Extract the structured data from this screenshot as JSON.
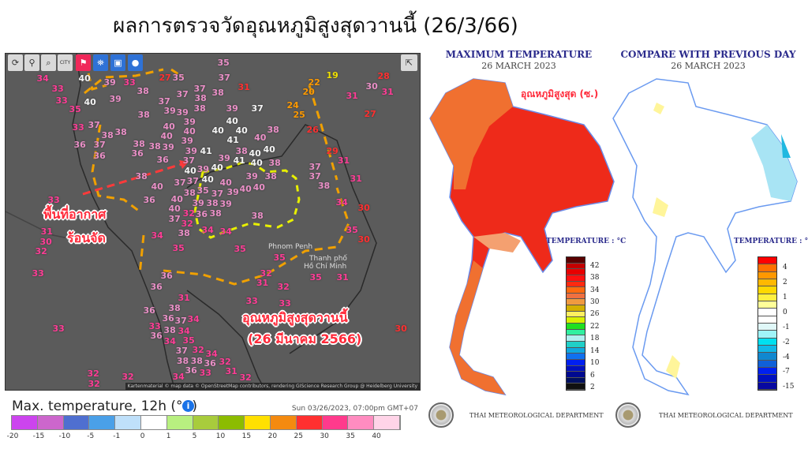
{
  "title": "ผลการตรวจวัดอุณหภูมิสูงสุดวานนี้ (26/3/66)",
  "map": {
    "toolbar": [
      {
        "icon": "refresh-icon",
        "label": ""
      },
      {
        "icon": "location-pin-icon",
        "label": ""
      },
      {
        "icon": "zoom-icon",
        "label": ""
      },
      {
        "icon": "city-icon",
        "label": "CITY"
      },
      {
        "icon": "weather-station-icon",
        "label": ""
      },
      {
        "icon": "satellite-icon",
        "label": ""
      },
      {
        "icon": "station-data-icon",
        "label": ""
      },
      {
        "icon": "balloon-icon",
        "label": ""
      }
    ],
    "share_icon": "share-icon",
    "cities": [
      "Phnom Penh",
      "Thanh phố",
      "Hồ Chí Minh"
    ],
    "annotation_hot_area": [
      "พื้นที่อากาศ",
      "ร้อนจัด"
    ],
    "annotation_max_temp": [
      "อุณหภูมิสูงสุดวานนี้",
      "(26 มีนาคม 2566)"
    ],
    "attribution": "Kartenmaterial © map data © OpenStreetMap contributors, rendering GIScience Research Group @ Heidelberg University",
    "label_colors": {
      "pk": "#e98fc6",
      "hp": "#ff3d96",
      "wh": "#f4f4f4",
      "rd": "#ff3030",
      "or": "#ff9a00",
      "ye": "#f0e000"
    },
    "stations": [
      [
        "34",
        "hp"
      ],
      [
        "40",
        "wh"
      ],
      [
        "39",
        "pk"
      ],
      [
        "33",
        "hp"
      ],
      [
        "27",
        "rd"
      ],
      [
        "35",
        "pk"
      ],
      [
        "37",
        "pk"
      ],
      [
        "31",
        "rd"
      ],
      [
        "22",
        "or"
      ],
      [
        "20",
        "or"
      ],
      [
        "19",
        "ye"
      ],
      [
        "35",
        "pk"
      ],
      [
        "28",
        "rd"
      ],
      [
        "30",
        "pk"
      ],
      [
        "31",
        "hp"
      ],
      [
        "31",
        "hp"
      ],
      [
        "27",
        "rd"
      ],
      [
        "33",
        "hp"
      ],
      [
        "33",
        "hp"
      ],
      [
        "40",
        "wh"
      ],
      [
        "39",
        "pk"
      ],
      [
        "38",
        "pk"
      ],
      [
        "37",
        "pk"
      ],
      [
        "37",
        "pk"
      ],
      [
        "38",
        "pk"
      ],
      [
        "38",
        "pk"
      ],
      [
        "38",
        "pk"
      ],
      [
        "24",
        "or"
      ],
      [
        "25",
        "or"
      ],
      [
        "35",
        "hp"
      ],
      [
        "37",
        "pk"
      ],
      [
        "39",
        "pk"
      ],
      [
        "39",
        "pk"
      ],
      [
        "39",
        "pk"
      ],
      [
        "38",
        "pk"
      ],
      [
        "39",
        "pk"
      ],
      [
        "37",
        "wh"
      ],
      [
        "40",
        "wh"
      ],
      [
        "26",
        "rd"
      ],
      [
        "33",
        "hp"
      ],
      [
        "37",
        "pk"
      ],
      [
        "38",
        "pk"
      ],
      [
        "38",
        "pk"
      ],
      [
        "40",
        "pk"
      ],
      [
        "40",
        "pk"
      ],
      [
        "40",
        "wh"
      ],
      [
        "40",
        "wh"
      ],
      [
        "41",
        "wh"
      ],
      [
        "38",
        "pk"
      ],
      [
        "40",
        "pk"
      ],
      [
        "40",
        "pk"
      ],
      [
        "39",
        "pk"
      ],
      [
        "36",
        "pk"
      ],
      [
        "37",
        "pk"
      ],
      [
        "38",
        "pk"
      ],
      [
        "38",
        "pk"
      ],
      [
        "39",
        "pk"
      ],
      [
        "39",
        "pk"
      ],
      [
        "37",
        "pk"
      ],
      [
        "41",
        "wh"
      ],
      [
        "40",
        "wh"
      ],
      [
        "29",
        "rd"
      ],
      [
        "36",
        "pk"
      ],
      [
        "36",
        "pk"
      ],
      [
        "38",
        "pk"
      ],
      [
        "40",
        "wh"
      ],
      [
        "41",
        "wh"
      ],
      [
        "40",
        "wh"
      ],
      [
        "31",
        "hp"
      ],
      [
        "36",
        "pk"
      ],
      [
        "38",
        "pk"
      ],
      [
        "40",
        "wh"
      ],
      [
        "37",
        "pk"
      ],
      [
        "39",
        "pk"
      ],
      [
        "40",
        "wh"
      ],
      [
        "39",
        "pk"
      ],
      [
        "37",
        "pk"
      ],
      [
        "37",
        "pk"
      ],
      [
        "38",
        "pk"
      ],
      [
        "40",
        "wh"
      ],
      [
        "39",
        "pk"
      ],
      [
        "38",
        "pk"
      ],
      [
        "31",
        "hp"
      ],
      [
        "37",
        "pk"
      ],
      [
        "40",
        "pk"
      ],
      [
        "39",
        "pk"
      ],
      [
        "40",
        "pk"
      ],
      [
        "40",
        "pk"
      ],
      [
        "40",
        "pk"
      ],
      [
        "38",
        "pk"
      ],
      [
        "35",
        "pk"
      ],
      [
        "37",
        "pk"
      ],
      [
        "38",
        "pk"
      ],
      [
        "40",
        "pk"
      ],
      [
        "36",
        "pk"
      ],
      [
        "34",
        "hp"
      ],
      [
        "30",
        "rd"
      ],
      [
        "33",
        "hp"
      ],
      [
        "40",
        "pk"
      ],
      [
        "39",
        "pk"
      ],
      [
        "38",
        "pk"
      ],
      [
        "39",
        "pk"
      ],
      [
        "32",
        "hp"
      ],
      [
        "36",
        "pk"
      ],
      [
        "37",
        "pk"
      ],
      [
        "38",
        "pk"
      ],
      [
        "38",
        "pk"
      ],
      [
        "32",
        "hp"
      ],
      [
        "31",
        "hp"
      ],
      [
        "30",
        "hp"
      ],
      [
        "34",
        "hp"
      ],
      [
        "38",
        "pk"
      ],
      [
        "34",
        "hp"
      ],
      [
        "34",
        "hp"
      ],
      [
        "35",
        "hp"
      ],
      [
        "30",
        "rd"
      ],
      [
        "32",
        "hp"
      ],
      [
        "35",
        "hp"
      ],
      [
        "35",
        "hp"
      ],
      [
        "35",
        "hp"
      ],
      [
        "33",
        "hp"
      ],
      [
        "36",
        "pk"
      ],
      [
        "36",
        "pk"
      ],
      [
        "32",
        "hp"
      ],
      [
        "31",
        "hp"
      ],
      [
        "32",
        "hp"
      ],
      [
        "35",
        "hp"
      ],
      [
        "31",
        "hp"
      ],
      [
        "31",
        "hp"
      ],
      [
        "33",
        "hp"
      ],
      [
        "33",
        "hp"
      ],
      [
        "38",
        "pk"
      ],
      [
        "36",
        "pk"
      ],
      [
        "36",
        "pk"
      ],
      [
        "37",
        "pk"
      ],
      [
        "34",
        "hp"
      ],
      [
        "33",
        "hp"
      ],
      [
        "36",
        "pk"
      ],
      [
        "38",
        "pk"
      ],
      [
        "34",
        "hp"
      ],
      [
        "35",
        "hp"
      ],
      [
        "34",
        "hp"
      ],
      [
        "37",
        "pk"
      ],
      [
        "30",
        "rd"
      ],
      [
        "32",
        "hp"
      ],
      [
        "38",
        "pk"
      ],
      [
        "38",
        "pk"
      ],
      [
        "34",
        "hp"
      ],
      [
        "36",
        "pk"
      ],
      [
        "36",
        "pk"
      ],
      [
        "32",
        "hp"
      ],
      [
        "31",
        "hp"
      ],
      [
        "33",
        "hp"
      ],
      [
        "33",
        "hp"
      ],
      [
        "32",
        "hp"
      ],
      [
        "32",
        "hp"
      ],
      [
        "32",
        "hp"
      ],
      [
        "34",
        "hp"
      ],
      [
        "32",
        "hp"
      ]
    ]
  },
  "legend": {
    "title": "Max. temperature, 12h (°C)",
    "info_icon": "info-icon",
    "datetime": "Sun 03/26/2023, 07:00pm GMT+07",
    "colors": [
      "#cc44ee",
      "#cc66cc",
      "#4f6fd0",
      "#4aa0e8",
      "#bfe0fa",
      "#ffffff",
      "#b8f080",
      "#a8cc3c",
      "#8cbc00",
      "#ffe000",
      "#f48a10",
      "#ff3030",
      "#ff3a8c",
      "#ff8cc0",
      "#ffd4e8"
    ],
    "labels": [
      "-20",
      "-15",
      "-10",
      "-5",
      "-1",
      "0",
      "1",
      "5",
      "10",
      "15",
      "20",
      "25",
      "30",
      "35",
      "40"
    ]
  },
  "tmd_max": {
    "title": "MAXIMUM TEMPERATURE",
    "date": "26 MARCH   2023",
    "annotation": "อุณหภูมิสูงสุด (ซ.)",
    "scale_title": "TEMPERATURE : °C",
    "scale_colors": [
      "#5a0000",
      "#c40000",
      "#e80000",
      "#ff1010",
      "#ff2a10",
      "#ff6a10",
      "#f07040",
      "#f09a40",
      "#d4b000",
      "#ffef60",
      "#d8f000",
      "#20e020",
      "#30f0a0",
      "#b0f0f0",
      "#20d0c8",
      "#10a8e0",
      "#1070f0",
      "#0020f0",
      "#0010c0",
      "#000a90",
      "#001060",
      "#101010"
    ],
    "scale_labels": [
      "42",
      "38",
      "34",
      "30",
      "26",
      "22",
      "18",
      "14",
      "10",
      "6",
      "2"
    ],
    "footer": "THAI METEOROLOGICAL DEPARTMENT"
  },
  "tmd_compare": {
    "title": "COMPARE WITH PREVIOUS DAY",
    "date": "26 MARCH   2023",
    "scale_title": "TEMPERATURE : °C",
    "scale_colors": [
      "#ff0000",
      "#ff7000",
      "#ff9800",
      "#ffb800",
      "#ffd800",
      "#fff040",
      "#ffff99",
      "#ffffff",
      "#ffffff",
      "#e0f8f8",
      "#a0f4f8",
      "#00e0f0",
      "#10b8e8",
      "#1088d0",
      "#1060d8",
      "#0020f0",
      "#0010c0",
      "#0808a0"
    ],
    "scale_labels": [
      "4",
      "2",
      "1",
      "0",
      "-1",
      "-2",
      "-4",
      "-7",
      "-15"
    ],
    "footer": "THAI METEOROLOGICAL DEPARTMENT"
  }
}
